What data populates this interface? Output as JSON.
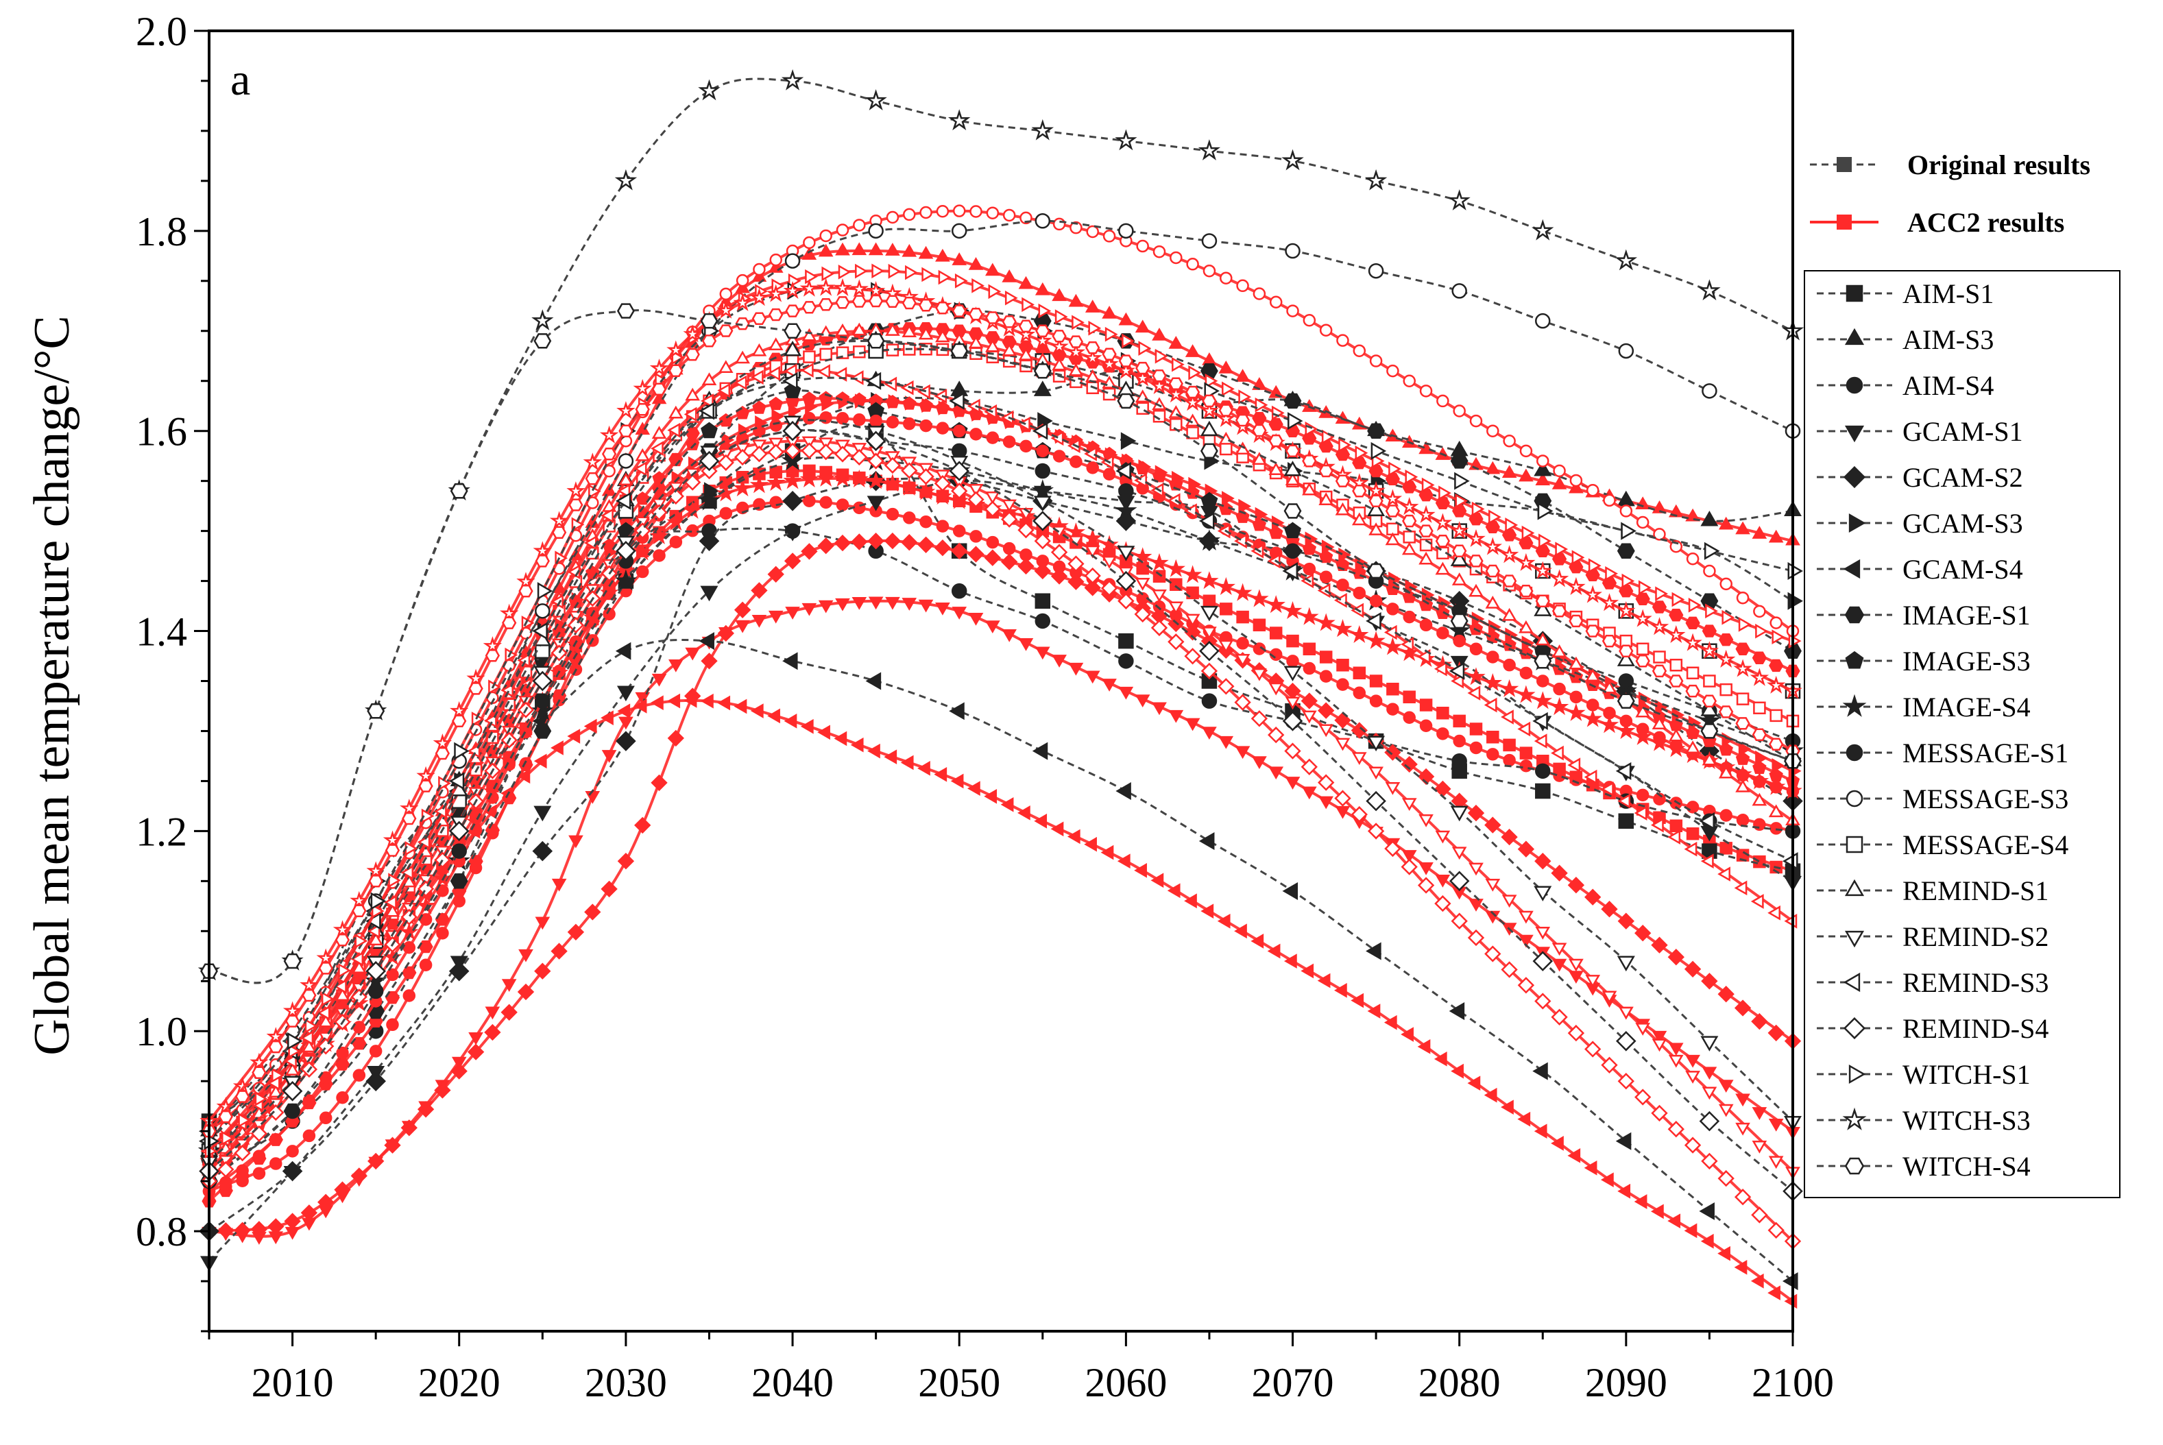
{
  "chart_data": {
    "type": "line",
    "panel_label": "a",
    "ylabel": "Global mean temperature change/°C",
    "xlabel": "",
    "xlim": [
      2005,
      2100
    ],
    "ylim": [
      0.7,
      2.0
    ],
    "xticks": [
      "2010",
      "2020",
      "2030",
      "2040",
      "2050",
      "2060",
      "2070",
      "2080",
      "2090",
      "2100"
    ],
    "yticks": [
      "0.8",
      "1.0",
      "1.2",
      "1.4",
      "1.6",
      "1.8",
      "2.0"
    ],
    "legend_groups": [
      {
        "label": "Original results",
        "style": "dashed",
        "color": "#444444"
      },
      {
        "label": "ACC2 results",
        "style": "solid",
        "color": "#ff2a2a"
      }
    ],
    "series_colors": {
      "original": "#444444",
      "acc2": "#ff2a2a"
    },
    "x": [
      2005,
      2010,
      2015,
      2020,
      2025,
      2030,
      2035,
      2040,
      2045,
      2050,
      2055,
      2060,
      2065,
      2070,
      2075,
      2080,
      2085,
      2090,
      2095,
      2100
    ],
    "series": [
      {
        "name": "AIM-S1",
        "marker": "square",
        "fill": true,
        "original": [
          0.91,
          0.97,
          1.1,
          1.22,
          1.33,
          1.45,
          1.53,
          1.58,
          1.6,
          1.48,
          1.43,
          1.39,
          1.35,
          1.32,
          1.29,
          1.26,
          1.24,
          1.21,
          1.18,
          1.16
        ],
        "acc2": [
          0.88,
          0.97,
          1.07,
          1.19,
          1.33,
          1.46,
          1.54,
          1.56,
          1.55,
          1.53,
          1.5,
          1.47,
          1.43,
          1.39,
          1.35,
          1.31,
          1.27,
          1.23,
          1.19,
          1.16
        ]
      },
      {
        "name": "AIM-S3",
        "marker": "triangle-up",
        "fill": true,
        "original": [
          0.9,
          0.97,
          1.12,
          1.25,
          1.42,
          1.55,
          1.62,
          1.66,
          1.65,
          1.64,
          1.64,
          1.66,
          1.63,
          1.63,
          1.6,
          1.58,
          1.56,
          1.53,
          1.51,
          1.52
        ],
        "acc2": [
          0.86,
          0.96,
          1.1,
          1.25,
          1.41,
          1.57,
          1.71,
          1.77,
          1.78,
          1.77,
          1.74,
          1.71,
          1.67,
          1.63,
          1.6,
          1.57,
          1.55,
          1.53,
          1.51,
          1.49
        ]
      },
      {
        "name": "AIM-S4",
        "marker": "circle",
        "fill": true,
        "original": [
          0.86,
          0.91,
          1.0,
          1.15,
          1.33,
          1.48,
          1.5,
          1.5,
          1.48,
          1.44,
          1.41,
          1.37,
          1.33,
          1.31,
          1.29,
          1.27,
          1.26,
          1.23,
          1.21,
          1.2
        ],
        "acc2": [
          0.84,
          0.88,
          0.98,
          1.13,
          1.3,
          1.44,
          1.51,
          1.53,
          1.52,
          1.5,
          1.47,
          1.44,
          1.4,
          1.37,
          1.33,
          1.29,
          1.26,
          1.24,
          1.22,
          1.2
        ]
      },
      {
        "name": "GCAM-S1",
        "marker": "triangle-down",
        "fill": true,
        "original": [
          0.77,
          0.86,
          0.96,
          1.07,
          1.22,
          1.34,
          1.44,
          1.5,
          1.53,
          1.55,
          1.54,
          1.53,
          1.52,
          1.46,
          1.41,
          1.37,
          1.31,
          1.26,
          1.2,
          1.15
        ],
        "acc2": [
          0.8,
          0.8,
          0.87,
          0.97,
          1.11,
          1.31,
          1.39,
          1.42,
          1.43,
          1.42,
          1.38,
          1.34,
          1.3,
          1.25,
          1.2,
          1.14,
          1.08,
          1.02,
          0.96,
          0.9
        ]
      },
      {
        "name": "GCAM-S2",
        "marker": "diamond",
        "fill": true,
        "original": [
          0.8,
          0.86,
          0.95,
          1.06,
          1.18,
          1.29,
          1.49,
          1.53,
          1.55,
          1.55,
          1.53,
          1.51,
          1.49,
          1.48,
          1.46,
          1.43,
          1.39,
          1.34,
          1.28,
          1.23
        ],
        "acc2": [
          0.8,
          0.81,
          0.87,
          0.96,
          1.06,
          1.17,
          1.37,
          1.47,
          1.49,
          1.48,
          1.46,
          1.43,
          1.39,
          1.34,
          1.29,
          1.23,
          1.17,
          1.11,
          1.05,
          0.99
        ]
      },
      {
        "name": "GCAM-S3",
        "marker": "triangle-right",
        "fill": true,
        "original": [
          0.88,
          0.98,
          1.15,
          1.25,
          1.4,
          1.48,
          1.54,
          1.6,
          1.63,
          1.63,
          1.61,
          1.59,
          1.57,
          1.56,
          1.55,
          1.53,
          1.52,
          1.5,
          1.48,
          1.43
        ],
        "acc2": [
          0.87,
          0.97,
          1.1,
          1.24,
          1.38,
          1.5,
          1.58,
          1.62,
          1.63,
          1.62,
          1.6,
          1.57,
          1.54,
          1.5,
          1.46,
          1.42,
          1.38,
          1.34,
          1.3,
          1.26
        ]
      },
      {
        "name": "GCAM-S4",
        "marker": "triangle-left",
        "fill": true,
        "original": [
          0.9,
          0.99,
          1.12,
          1.24,
          1.31,
          1.38,
          1.39,
          1.37,
          1.35,
          1.32,
          1.28,
          1.24,
          1.19,
          1.14,
          1.08,
          1.02,
          0.96,
          0.89,
          0.82,
          0.75
        ],
        "acc2": [
          0.9,
          0.97,
          1.07,
          1.18,
          1.27,
          1.32,
          1.33,
          1.31,
          1.28,
          1.25,
          1.21,
          1.17,
          1.12,
          1.07,
          1.02,
          0.96,
          0.9,
          0.84,
          0.79,
          0.73
        ]
      },
      {
        "name": "IMAGE-S1",
        "marker": "hexagon",
        "fill": true,
        "original": [
          0.85,
          0.92,
          1.02,
          1.15,
          1.3,
          1.45,
          1.58,
          1.66,
          1.7,
          1.72,
          1.71,
          1.69,
          1.66,
          1.63,
          1.6,
          1.57,
          1.53,
          1.48,
          1.43,
          1.38
        ],
        "acc2": [
          0.83,
          0.91,
          1.01,
          1.14,
          1.3,
          1.48,
          1.62,
          1.68,
          1.7,
          1.7,
          1.68,
          1.66,
          1.63,
          1.6,
          1.56,
          1.52,
          1.48,
          1.44,
          1.4,
          1.36
        ]
      },
      {
        "name": "IMAGE-S3",
        "marker": "pentagon",
        "fill": true,
        "original": [
          0.87,
          0.97,
          1.09,
          1.22,
          1.37,
          1.5,
          1.6,
          1.64,
          1.62,
          1.6,
          1.58,
          1.56,
          1.53,
          1.5,
          1.46,
          1.42,
          1.38,
          1.34,
          1.3,
          1.27
        ],
        "acc2": [
          0.86,
          0.95,
          1.08,
          1.22,
          1.37,
          1.51,
          1.6,
          1.63,
          1.63,
          1.62,
          1.6,
          1.57,
          1.53,
          1.49,
          1.45,
          1.41,
          1.37,
          1.33,
          1.29,
          1.25
        ]
      },
      {
        "name": "IMAGE-S4",
        "marker": "star",
        "fill": true,
        "original": [
          0.88,
          0.95,
          1.05,
          1.17,
          1.32,
          1.45,
          1.53,
          1.57,
          1.57,
          1.56,
          1.54,
          1.52,
          1.49,
          1.46,
          1.43,
          1.4,
          1.37,
          1.34,
          1.31,
          1.28
        ],
        "acc2": [
          0.87,
          0.95,
          1.05,
          1.18,
          1.33,
          1.46,
          1.53,
          1.55,
          1.55,
          1.53,
          1.51,
          1.48,
          1.45,
          1.42,
          1.39,
          1.36,
          1.33,
          1.3,
          1.27,
          1.24
        ]
      },
      {
        "name": "MESSAGE-S1",
        "marker": "circle",
        "fill": true,
        "original": [
          0.85,
          0.92,
          1.04,
          1.18,
          1.33,
          1.47,
          1.57,
          1.6,
          1.59,
          1.58,
          1.56,
          1.54,
          1.51,
          1.48,
          1.45,
          1.42,
          1.38,
          1.35,
          1.32,
          1.29
        ],
        "acc2": [
          0.84,
          0.91,
          1.03,
          1.17,
          1.33,
          1.47,
          1.57,
          1.61,
          1.61,
          1.6,
          1.58,
          1.55,
          1.51,
          1.47,
          1.43,
          1.39,
          1.35,
          1.31,
          1.27,
          1.24
        ]
      },
      {
        "name": "MESSAGE-S3",
        "marker": "circle",
        "fill": false,
        "original": [
          0.9,
          1.0,
          1.13,
          1.27,
          1.42,
          1.57,
          1.7,
          1.77,
          1.8,
          1.8,
          1.81,
          1.8,
          1.79,
          1.78,
          1.76,
          1.74,
          1.71,
          1.68,
          1.64,
          1.6
        ],
        "acc2": [
          0.89,
          0.99,
          1.12,
          1.27,
          1.43,
          1.59,
          1.72,
          1.78,
          1.81,
          1.82,
          1.81,
          1.79,
          1.76,
          1.72,
          1.67,
          1.62,
          1.57,
          1.52,
          1.46,
          1.4
        ]
      },
      {
        "name": "MESSAGE-S4",
        "marker": "square",
        "fill": false,
        "original": [
          0.88,
          0.96,
          1.09,
          1.23,
          1.38,
          1.52,
          1.62,
          1.66,
          1.68,
          1.68,
          1.67,
          1.65,
          1.62,
          1.58,
          1.54,
          1.5,
          1.46,
          1.42,
          1.38,
          1.34
        ],
        "acc2": [
          0.87,
          0.96,
          1.09,
          1.23,
          1.39,
          1.53,
          1.63,
          1.67,
          1.68,
          1.68,
          1.66,
          1.63,
          1.59,
          1.55,
          1.51,
          1.47,
          1.43,
          1.39,
          1.35,
          1.31
        ]
      },
      {
        "name": "REMIND-S1",
        "marker": "triangle-up",
        "fill": false,
        "original": [
          0.88,
          0.97,
          1.1,
          1.24,
          1.39,
          1.53,
          1.63,
          1.68,
          1.69,
          1.68,
          1.66,
          1.64,
          1.6,
          1.56,
          1.52,
          1.47,
          1.42,
          1.37,
          1.32,
          1.27
        ],
        "acc2": [
          0.87,
          0.96,
          1.09,
          1.24,
          1.4,
          1.55,
          1.65,
          1.69,
          1.7,
          1.69,
          1.67,
          1.64,
          1.6,
          1.55,
          1.5,
          1.45,
          1.39,
          1.33,
          1.27,
          1.21
        ]
      },
      {
        "name": "REMIND-S2",
        "marker": "triangle-down",
        "fill": false,
        "original": [
          0.87,
          0.95,
          1.07,
          1.21,
          1.36,
          1.49,
          1.58,
          1.61,
          1.6,
          1.57,
          1.53,
          1.48,
          1.42,
          1.36,
          1.29,
          1.22,
          1.14,
          1.07,
          0.99,
          0.91
        ],
        "acc2": [
          0.86,
          0.95,
          1.07,
          1.21,
          1.36,
          1.49,
          1.57,
          1.59,
          1.58,
          1.55,
          1.51,
          1.46,
          1.4,
          1.33,
          1.26,
          1.18,
          1.1,
          1.02,
          0.94,
          0.86
        ]
      },
      {
        "name": "REMIND-S3",
        "marker": "triangle-left",
        "fill": false,
        "original": [
          0.89,
          0.98,
          1.11,
          1.25,
          1.4,
          1.53,
          1.62,
          1.65,
          1.65,
          1.63,
          1.6,
          1.56,
          1.51,
          1.46,
          1.41,
          1.36,
          1.31,
          1.26,
          1.21,
          1.17
        ],
        "acc2": [
          0.88,
          0.97,
          1.1,
          1.25,
          1.4,
          1.54,
          1.63,
          1.66,
          1.65,
          1.63,
          1.6,
          1.56,
          1.51,
          1.46,
          1.41,
          1.35,
          1.29,
          1.23,
          1.17,
          1.11
        ]
      },
      {
        "name": "REMIND-S4",
        "marker": "diamond",
        "fill": false,
        "original": [
          0.86,
          0.94,
          1.06,
          1.2,
          1.35,
          1.48,
          1.57,
          1.6,
          1.59,
          1.56,
          1.51,
          1.45,
          1.38,
          1.31,
          1.23,
          1.15,
          1.07,
          0.99,
          0.91,
          0.84
        ],
        "acc2": [
          0.85,
          0.94,
          1.06,
          1.2,
          1.35,
          1.48,
          1.56,
          1.58,
          1.57,
          1.54,
          1.49,
          1.43,
          1.36,
          1.28,
          1.2,
          1.11,
          1.03,
          0.95,
          0.87,
          0.79
        ]
      },
      {
        "name": "WITCH-S1",
        "marker": "triangle-right",
        "fill": false,
        "original": [
          0.89,
          0.99,
          1.13,
          1.28,
          1.44,
          1.6,
          1.7,
          1.74,
          1.74,
          1.72,
          1.7,
          1.67,
          1.64,
          1.61,
          1.58,
          1.55,
          1.52,
          1.5,
          1.48,
          1.46
        ],
        "acc2": [
          0.88,
          0.98,
          1.12,
          1.28,
          1.44,
          1.6,
          1.71,
          1.75,
          1.76,
          1.75,
          1.72,
          1.69,
          1.65,
          1.61,
          1.57,
          1.53,
          1.49,
          1.45,
          1.42,
          1.39
        ]
      },
      {
        "name": "WITCH-S3",
        "marker": "star",
        "fill": false,
        "original": [
          1.06,
          1.07,
          1.32,
          1.54,
          1.71,
          1.85,
          1.94,
          1.95,
          1.93,
          1.91,
          1.9,
          1.89,
          1.88,
          1.87,
          1.85,
          1.83,
          1.8,
          1.77,
          1.74,
          1.7
        ],
        "acc2": [
          0.91,
          1.02,
          1.16,
          1.32,
          1.48,
          1.62,
          1.71,
          1.74,
          1.74,
          1.72,
          1.69,
          1.66,
          1.62,
          1.58,
          1.54,
          1.5,
          1.46,
          1.42,
          1.38,
          1.34
        ]
      },
      {
        "name": "WITCH-S4",
        "marker": "hexagon",
        "fill": false,
        "original": [
          1.06,
          1.07,
          1.32,
          1.54,
          1.69,
          1.72,
          1.71,
          1.7,
          1.69,
          1.68,
          1.66,
          1.63,
          1.58,
          1.52,
          1.46,
          1.41,
          1.37,
          1.33,
          1.3,
          1.27
        ],
        "acc2": [
          0.9,
          1.01,
          1.15,
          1.31,
          1.47,
          1.6,
          1.69,
          1.72,
          1.73,
          1.72,
          1.7,
          1.67,
          1.63,
          1.58,
          1.53,
          1.48,
          1.43,
          1.38,
          1.33,
          1.28
        ]
      }
    ]
  }
}
